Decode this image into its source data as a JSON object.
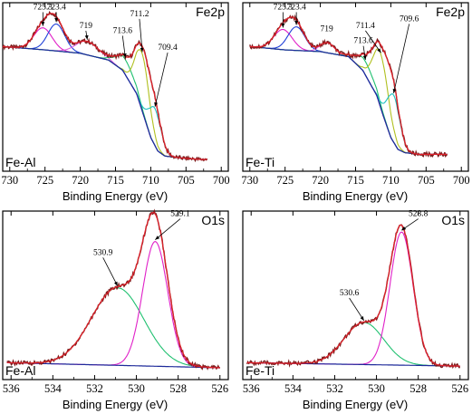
{
  "figure": {
    "panels": [
      {
        "sample": "Fe-Al",
        "region": "Fe2p",
        "xlabel": "Binding Energy (eV)"
      },
      {
        "sample": "Fe-Ti",
        "region": "Fe2p",
        "xlabel": "Binding Energy (eV)"
      },
      {
        "sample": "Fe-Al",
        "region": "O1s",
        "xlabel": "Binding Energy (eV)"
      },
      {
        "sample": "Fe-Ti",
        "region": "O1s",
        "xlabel": "Binding Energy (eV)"
      }
    ]
  },
  "chart_data": [
    {
      "type": "line",
      "sample": "Fe-Al",
      "region": "Fe2p",
      "xlabel": "Binding Energy (eV)",
      "xlim": [
        731,
        699
      ],
      "x_reversed": true,
      "xticks": [
        730,
        725,
        720,
        715,
        710,
        705,
        700
      ],
      "ylim": [
        0,
        1
      ],
      "colors": {
        "data": "#7a1a1a",
        "envelope": "#e0202a",
        "background": "#1e2a9a",
        "c1": "#e020c8",
        "c2": "#2040d8",
        "c3": "#e060e0",
        "c4": "#20c070",
        "c5": "#b0c020",
        "c6": "#20c0c0",
        "c7": "#c09020"
      },
      "background": [
        [
          731,
          0.74
        ],
        [
          725,
          0.72
        ],
        [
          720,
          0.7
        ],
        [
          716,
          0.66
        ],
        [
          714,
          0.6
        ],
        [
          712,
          0.46
        ],
        [
          711,
          0.33
        ],
        [
          710,
          0.2
        ],
        [
          709,
          0.12
        ],
        [
          708,
          0.09
        ],
        [
          706,
          0.08
        ],
        [
          703,
          0.07
        ],
        [
          702,
          0.07
        ]
      ],
      "components": [
        {
          "center": 725.3,
          "height": 0.13,
          "width": 1.3
        },
        {
          "center": 723.4,
          "height": 0.16,
          "width": 1.2
        },
        {
          "center": 719,
          "height": 0.08,
          "width": 1.6
        },
        {
          "center": 713.6,
          "height": 0.09,
          "width": 1.3
        },
        {
          "center": 711.2,
          "height": 0.34,
          "width": 1.0
        },
        {
          "center": 709.4,
          "height": 0.22,
          "width": 0.9
        }
      ],
      "peak_labels": [
        {
          "text": "725.3",
          "x": 725.3,
          "y": 0.96
        },
        {
          "text": "723.4",
          "x": 723.4,
          "y": 0.96
        },
        {
          "text": "719",
          "x": 719.2,
          "y": 0.85
        },
        {
          "text": "713.6",
          "x": 714.0,
          "y": 0.82
        },
        {
          "text": "711.2",
          "x": 711.6,
          "y": 0.92
        },
        {
          "text": "709.4",
          "x": 707.6,
          "y": 0.72
        }
      ]
    },
    {
      "type": "line",
      "sample": "Fe-Ti",
      "region": "Fe2p",
      "xlabel": "Binding Energy (eV)",
      "xlim": [
        731,
        699
      ],
      "x_reversed": true,
      "xticks": [
        730,
        725,
        720,
        715,
        710,
        705,
        700
      ],
      "ylim": [
        0,
        1
      ],
      "colors": {
        "data": "#7a1a1a",
        "envelope": "#e0202a",
        "background": "#1e2a9a",
        "c1": "#e020c8",
        "c2": "#2040d8",
        "c3": "#e060e0",
        "c4": "#20c070",
        "c5": "#b0c020",
        "c6": "#20c0c0",
        "c7": "#c09020"
      },
      "background": [
        [
          730,
          0.74
        ],
        [
          725,
          0.72
        ],
        [
          720,
          0.71
        ],
        [
          716,
          0.68
        ],
        [
          714,
          0.6
        ],
        [
          712,
          0.45
        ],
        [
          711,
          0.32
        ],
        [
          710,
          0.2
        ],
        [
          709,
          0.13
        ],
        [
          708,
          0.11
        ],
        [
          706,
          0.1
        ],
        [
          703,
          0.1
        ],
        [
          702,
          0.1
        ]
      ],
      "components": [
        {
          "center": 725.3,
          "height": 0.12,
          "width": 1.3
        },
        {
          "center": 723.4,
          "height": 0.14,
          "width": 1.2
        },
        {
          "center": 719,
          "height": 0.06,
          "width": 1.0
        },
        {
          "center": 713.6,
          "height": 0.08,
          "width": 1.3
        },
        {
          "center": 711.4,
          "height": 0.32,
          "width": 1.1
        },
        {
          "center": 709.6,
          "height": 0.28,
          "width": 0.9
        }
      ],
      "peak_labels": [
        {
          "text": "725.3",
          "x": 725.3,
          "y": 0.96
        },
        {
          "text": "723.4",
          "x": 723.4,
          "y": 0.96
        },
        {
          "text": "719",
          "x": 719.1,
          "y": 0.83
        },
        {
          "text": "713.6",
          "x": 713.9,
          "y": 0.76
        },
        {
          "text": "711.4",
          "x": 713.6,
          "y": 0.85
        },
        {
          "text": "709.6",
          "x": 707.4,
          "y": 0.89
        }
      ]
    },
    {
      "type": "line",
      "sample": "Fe-Al",
      "region": "O1s",
      "xlabel": "Binding Energy (eV)",
      "xlim": [
        536.4,
        525.6
      ],
      "x_reversed": true,
      "xticks": [
        536,
        534,
        532,
        530,
        528,
        526
      ],
      "ylim": [
        0,
        1
      ],
      "colors": {
        "data": "#7a1a1a",
        "envelope": "#e0202a",
        "background": "#1e2a9a",
        "c1": "#e020c8",
        "c2": "#2040d8",
        "c3": "#e060e0",
        "c4": "#20c070",
        "c5": "#b0c020",
        "c6": "#20c0c0",
        "c7": "#c09020"
      },
      "background": [
        [
          536.2,
          0.1
        ],
        [
          526,
          0.07
        ]
      ],
      "components": [
        {
          "center": 530.9,
          "height": 0.46,
          "width": 1.25
        },
        {
          "center": 529.1,
          "height": 0.74,
          "width": 0.6
        }
      ],
      "peak_labels": [
        {
          "text": "530.9",
          "x": 531.6,
          "y": 0.74
        },
        {
          "text": "529.1",
          "x": 527.9,
          "y": 0.97
        }
      ]
    },
    {
      "type": "line",
      "sample": "Fe-Ti",
      "region": "O1s",
      "xlabel": "Binding Energy (eV)",
      "xlim": [
        536.4,
        525.6
      ],
      "x_reversed": true,
      "xticks": [
        536,
        534,
        532,
        530,
        528,
        526
      ],
      "ylim": [
        0,
        1
      ],
      "colors": {
        "data": "#7a1a1a",
        "envelope": "#e0202a",
        "background": "#1e2a9a",
        "c1": "#e020c8",
        "c2": "#2040d8",
        "c3": "#e060e0",
        "c4": "#20c070",
        "c5": "#b0c020",
        "c6": "#20c0c0",
        "c7": "#c09020"
      },
      "background": [
        [
          536.2,
          0.1
        ],
        [
          526,
          0.08
        ]
      ],
      "components": [
        {
          "center": 530.6,
          "height": 0.25,
          "width": 0.95
        },
        {
          "center": 528.8,
          "height": 0.79,
          "width": 0.55
        }
      ],
      "peak_labels": [
        {
          "text": "530.6",
          "x": 531.3,
          "y": 0.5
        },
        {
          "text": "528.8",
          "x": 528.0,
          "y": 0.97
        }
      ]
    }
  ]
}
